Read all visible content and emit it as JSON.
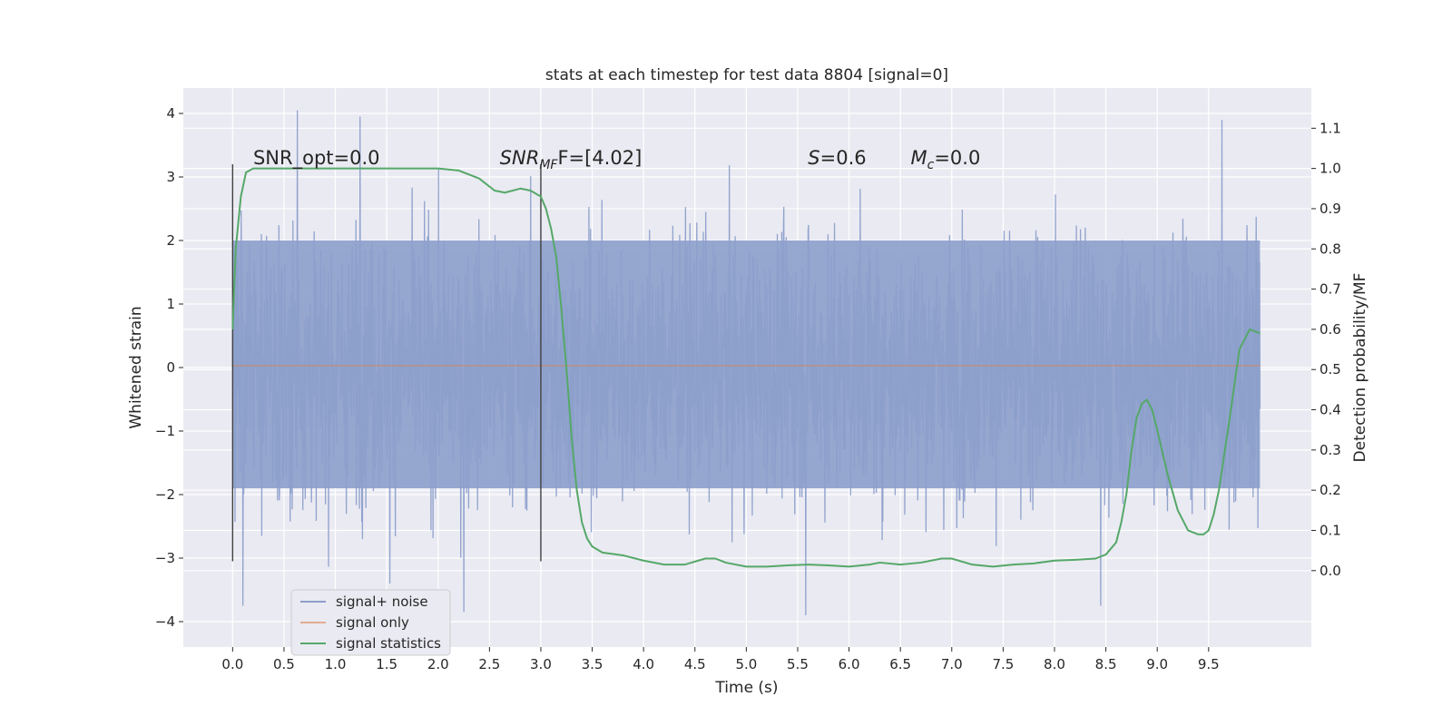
{
  "chart_data": {
    "type": "line",
    "title": "stats at each timestep for test data 8804 [signal=0]",
    "xlabel": "Time (s)",
    "ylabel": "Whitened strain",
    "y2label": "Detection probability/MF",
    "xlim": [
      -0.48,
      10.5
    ],
    "ylim": [
      -4.4,
      4.4
    ],
    "y2lim": [
      -0.19,
      1.2
    ],
    "x_ticks": [
      "0.0",
      "0.5",
      "1.0",
      "1.5",
      "2.0",
      "2.5",
      "3.0",
      "3.5",
      "4.0",
      "4.5",
      "5.0",
      "5.5",
      "6.0",
      "6.5",
      "7.0",
      "7.5",
      "8.0",
      "8.5",
      "9.0",
      "9.5"
    ],
    "y_ticks": [
      "4",
      "3",
      "2",
      "1",
      "0",
      "−1",
      "−2",
      "−3",
      "−4"
    ],
    "y2_ticks": [
      "1.1",
      "1.0",
      "0.9",
      "0.8",
      "0.7",
      "0.6",
      "0.5",
      "0.4",
      "0.3",
      "0.2",
      "0.1",
      "0.0"
    ],
    "grid": true,
    "legend_position": "lower-left",
    "annotations": [
      {
        "text": "SNR_opt=0.0",
        "x": 0.2,
        "y": 3.2
      },
      {
        "text": "SNR",
        "sub": "MF",
        "rest": "F=[4.02]",
        "x": 2.6,
        "y": 3.2
      },
      {
        "text": "S",
        "rest": "=0.6",
        "x": 5.6,
        "y": 3.2
      },
      {
        "text": "M",
        "sub": "c",
        "rest": "=0.0",
        "x": 6.6,
        "y": 3.2
      }
    ],
    "vlines": [
      {
        "x": 0.0,
        "ymin": -3.05,
        "ymax": 3.2
      },
      {
        "x": 3.0,
        "ymin": -3.05,
        "ymax": 3.2
      }
    ],
    "series": [
      {
        "name": "signal+ noise",
        "axis": "left",
        "x_range": [
          0.0,
          10.0
        ],
        "core_band": [
          -1.9,
          2.0
        ],
        "extreme_envelope": [
          -3.9,
          4.0
        ],
        "notable_peaks": [
          {
            "x": 0.63,
            "y": 4.05
          },
          {
            "x": 1.24,
            "y": 3.95
          },
          {
            "x": 1.53,
            "y": -3.4
          },
          {
            "x": 5.58,
            "y": -3.9
          },
          {
            "x": 8.45,
            "y": -3.75
          },
          {
            "x": 9.63,
            "y": 3.9
          },
          {
            "x": 0.1,
            "y": -3.75
          },
          {
            "x": 2.25,
            "y": -3.85
          }
        ],
        "color": "#8c9fcb"
      },
      {
        "name": "signal only",
        "axis": "left",
        "x": [
          0.0,
          10.0
        ],
        "y": [
          0.03,
          0.03
        ],
        "color": "#dd8452"
      },
      {
        "name": "signal statistics",
        "axis": "right",
        "x": [
          0.0,
          0.03,
          0.08,
          0.13,
          0.2,
          0.3,
          0.5,
          1.0,
          1.5,
          2.0,
          2.2,
          2.4,
          2.55,
          2.65,
          2.8,
          2.9,
          3.0,
          3.05,
          3.1,
          3.15,
          3.2,
          3.25,
          3.3,
          3.35,
          3.4,
          3.45,
          3.5,
          3.6,
          3.8,
          4.0,
          4.2,
          4.4,
          4.6,
          4.7,
          4.8,
          5.0,
          5.2,
          5.4,
          5.6,
          5.8,
          6.0,
          6.2,
          6.3,
          6.5,
          6.7,
          6.9,
          7.0,
          7.2,
          7.4,
          7.6,
          7.8,
          8.0,
          8.2,
          8.4,
          8.5,
          8.6,
          8.65,
          8.7,
          8.75,
          8.8,
          8.85,
          8.9,
          8.95,
          9.0,
          9.1,
          9.2,
          9.3,
          9.4,
          9.45,
          9.5,
          9.55,
          9.6,
          9.7,
          9.8,
          9.9,
          10.0
        ],
        "y": [
          0.6,
          0.8,
          0.93,
          0.99,
          1.0,
          1.0,
          1.0,
          1.0,
          1.0,
          1.0,
          0.995,
          0.975,
          0.945,
          0.94,
          0.95,
          0.945,
          0.93,
          0.9,
          0.85,
          0.78,
          0.65,
          0.5,
          0.33,
          0.2,
          0.12,
          0.08,
          0.06,
          0.045,
          0.038,
          0.025,
          0.015,
          0.015,
          0.03,
          0.03,
          0.02,
          0.01,
          0.01,
          0.013,
          0.015,
          0.013,
          0.01,
          0.015,
          0.02,
          0.015,
          0.02,
          0.03,
          0.03,
          0.015,
          0.01,
          0.015,
          0.018,
          0.025,
          0.027,
          0.03,
          0.04,
          0.07,
          0.12,
          0.19,
          0.3,
          0.38,
          0.415,
          0.425,
          0.4,
          0.35,
          0.24,
          0.15,
          0.1,
          0.09,
          0.09,
          0.1,
          0.14,
          0.2,
          0.37,
          0.55,
          0.6,
          0.59
        ],
        "color": "#55a868"
      }
    ]
  }
}
